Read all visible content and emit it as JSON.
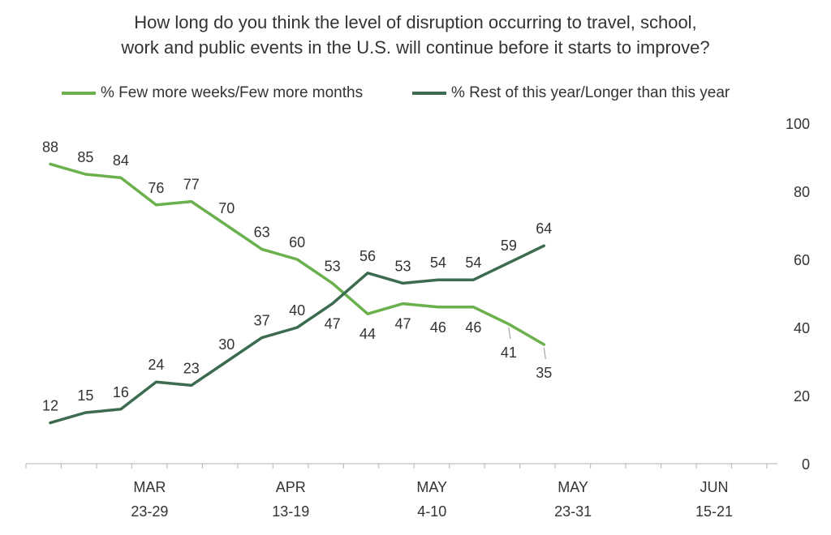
{
  "chart_data": {
    "type": "line",
    "title_lines": [
      "How long do you think the level of disruption occurring to travel, school,",
      "work and public events in the U.S. will continue before it starts to improve?"
    ],
    "x": [
      "1",
      "2",
      "3",
      "4",
      "5",
      "6",
      "7",
      "8",
      "9",
      "10",
      "11",
      "12",
      "13",
      "14",
      "15"
    ],
    "x_tick_labels": [
      {
        "index": 3,
        "line1": "MAR",
        "line2": "23-29"
      },
      {
        "index": 7,
        "line1": "APR",
        "line2": "13-19"
      },
      {
        "index": 11,
        "line1": "MAY",
        "line2": "4-10"
      },
      {
        "index": 15,
        "line1": "MAY",
        "line2": "23-31"
      },
      {
        "index": 19,
        "line1": "JUN",
        "line2": "15-21"
      }
    ],
    "ylim": [
      0,
      100
    ],
    "yticks": [
      0,
      20,
      40,
      60,
      80,
      100
    ],
    "y_axis_side": "right",
    "grid": false,
    "legend_position": "top",
    "series": [
      {
        "name": "% Few more weeks/Few more months",
        "color": "#6ab04c",
        "values": [
          88,
          85,
          84,
          76,
          77,
          70,
          63,
          60,
          53,
          44,
          47,
          46,
          46,
          41,
          35
        ],
        "label_position": [
          "above",
          "above",
          "above",
          "above",
          "above",
          "above",
          "above",
          "above",
          "above",
          "below",
          "below",
          "below",
          "below",
          "below",
          "below"
        ]
      },
      {
        "name": "% Rest of this year/Longer than this year",
        "color": "#3d6b4f",
        "values": [
          12,
          15,
          16,
          24,
          23,
          30,
          37,
          40,
          47,
          56,
          53,
          54,
          54,
          59,
          64
        ],
        "label_position": [
          "above",
          "above",
          "above",
          "above",
          "above",
          "above",
          "above",
          "above",
          "below",
          "above",
          "above",
          "above",
          "above",
          "above",
          "above"
        ]
      }
    ]
  }
}
